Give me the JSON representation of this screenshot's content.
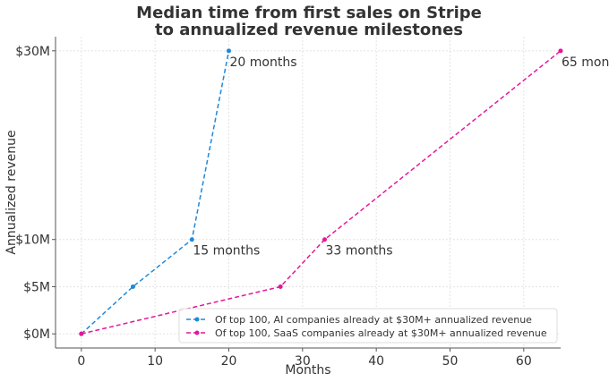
{
  "chart_data": {
    "type": "line",
    "title": "Median time from first sales on Stripe",
    "subtitle": "to annualized revenue milestones",
    "xlabel": "Months",
    "ylabel": "Annualized revenue",
    "xlim": [
      -3.5,
      65
    ],
    "ylim": [
      -1.5,
      31.5
    ],
    "xticks": [
      0,
      10,
      20,
      30,
      40,
      50,
      60
    ],
    "xtick_labels": [
      "0",
      "10",
      "20",
      "30",
      "40",
      "50",
      "60"
    ],
    "yticks": [
      0,
      5,
      10,
      30
    ],
    "ytick_labels": [
      "$0M",
      "$5M",
      "$10M",
      "$30M"
    ],
    "grid": true,
    "legend_position": "lower-right",
    "series": [
      {
        "name": "Of top 100, AI companies already at $30M+ annualized revenue",
        "color": "#1f88d8",
        "x": [
          0,
          7,
          15,
          20
        ],
        "y": [
          0,
          5,
          10,
          30
        ]
      },
      {
        "name": "Of top 100, SaaS companies already at $30M+ annualized revenue",
        "color": "#e6159a",
        "x": [
          0,
          27,
          33,
          65
        ],
        "y": [
          0,
          5,
          10,
          30
        ]
      }
    ],
    "annotations": [
      {
        "text": "20 months",
        "x": 20,
        "y": 30,
        "series": 0
      },
      {
        "text": "15 months",
        "x": 15,
        "y": 10,
        "series": 0
      },
      {
        "text": "33 months",
        "x": 33,
        "y": 10,
        "series": 1
      },
      {
        "text": "65 months",
        "x": 65,
        "y": 30,
        "series": 1
      }
    ]
  }
}
